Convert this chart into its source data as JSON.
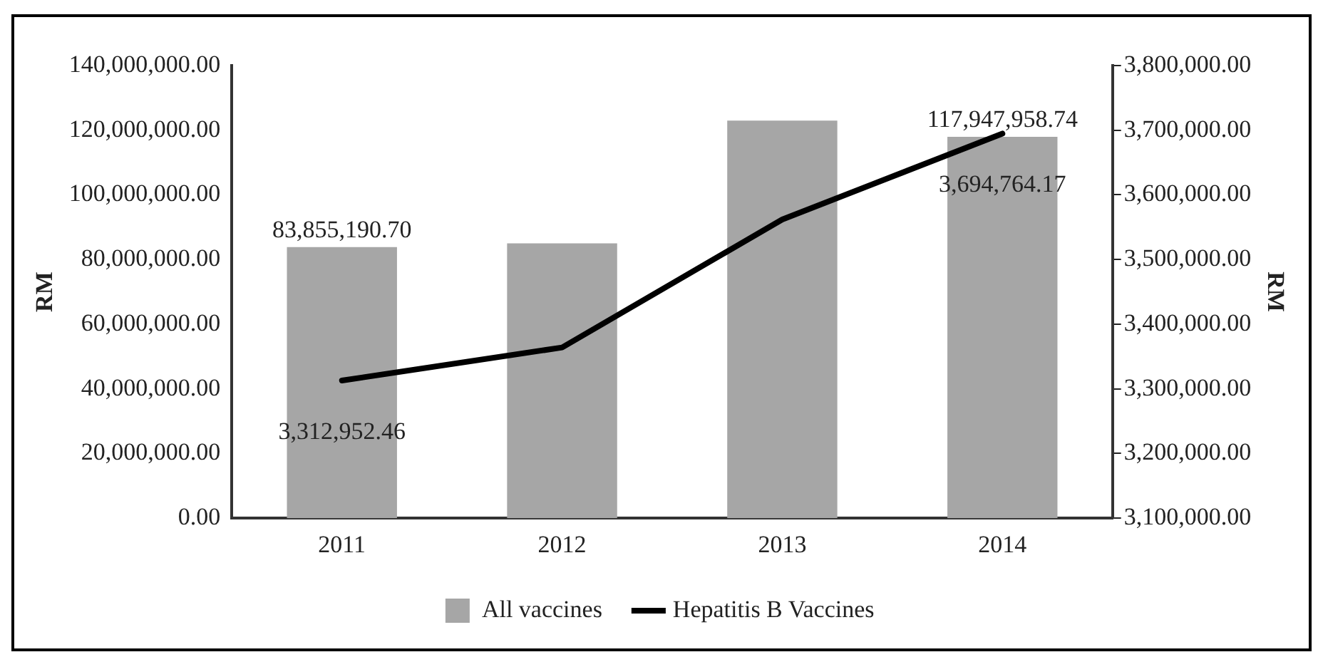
{
  "chart_data": {
    "type": "bar",
    "ylabel": "RM",
    "y2label": "RM",
    "categories": [
      "2011",
      "2012",
      "2013",
      "2014"
    ],
    "series": [
      {
        "name": "All vaccines",
        "color": "#a6a6a6",
        "values": [
          83855190.7,
          85000000,
          123000000,
          117947958.74
        ],
        "value_labels": [
          "83,855,190.70",
          null,
          null,
          "117,947,958.74"
        ]
      },
      {
        "name": "Hepatitis B Vaccines",
        "type": "line",
        "axis": "y2",
        "color": "#000000",
        "values": [
          3312952.46,
          3364000,
          3562000,
          3694764.17
        ],
        "value_labels": [
          "3,312,952.46",
          null,
          null,
          "3,694,764.17"
        ]
      }
    ],
    "ylim": [
      0,
      140000000
    ],
    "yticks": [
      {
        "value": 0,
        "label": "0.00"
      },
      {
        "value": 20000000,
        "label": "20,000,000.00"
      },
      {
        "value": 40000000,
        "label": "40,000,000.00"
      },
      {
        "value": 60000000,
        "label": "60,000,000.00"
      },
      {
        "value": 80000000,
        "label": "80,000,000.00"
      },
      {
        "value": 100000000,
        "label": "100,000,000.00"
      },
      {
        "value": 120000000,
        "label": "120,000,000.00"
      },
      {
        "value": 140000000,
        "label": "140,000,000.00"
      }
    ],
    "y2lim": [
      3100000,
      3800000
    ],
    "y2ticks": [
      {
        "value": 3100000,
        "label": "3,100,000.00"
      },
      {
        "value": 3200000,
        "label": "3,200,000.00"
      },
      {
        "value": 3300000,
        "label": "3,300,000.00"
      },
      {
        "value": 3400000,
        "label": "3,400,000.00"
      },
      {
        "value": 3500000,
        "label": "3,500,000.00"
      },
      {
        "value": 3600000,
        "label": "3,600,000.00"
      },
      {
        "value": 3700000,
        "label": "3,700,000.00"
      },
      {
        "value": 3800000,
        "label": "3,800,000.00"
      }
    ],
    "grid": false,
    "legend": "bottom",
    "marker": "none",
    "line_style": "solid"
  }
}
